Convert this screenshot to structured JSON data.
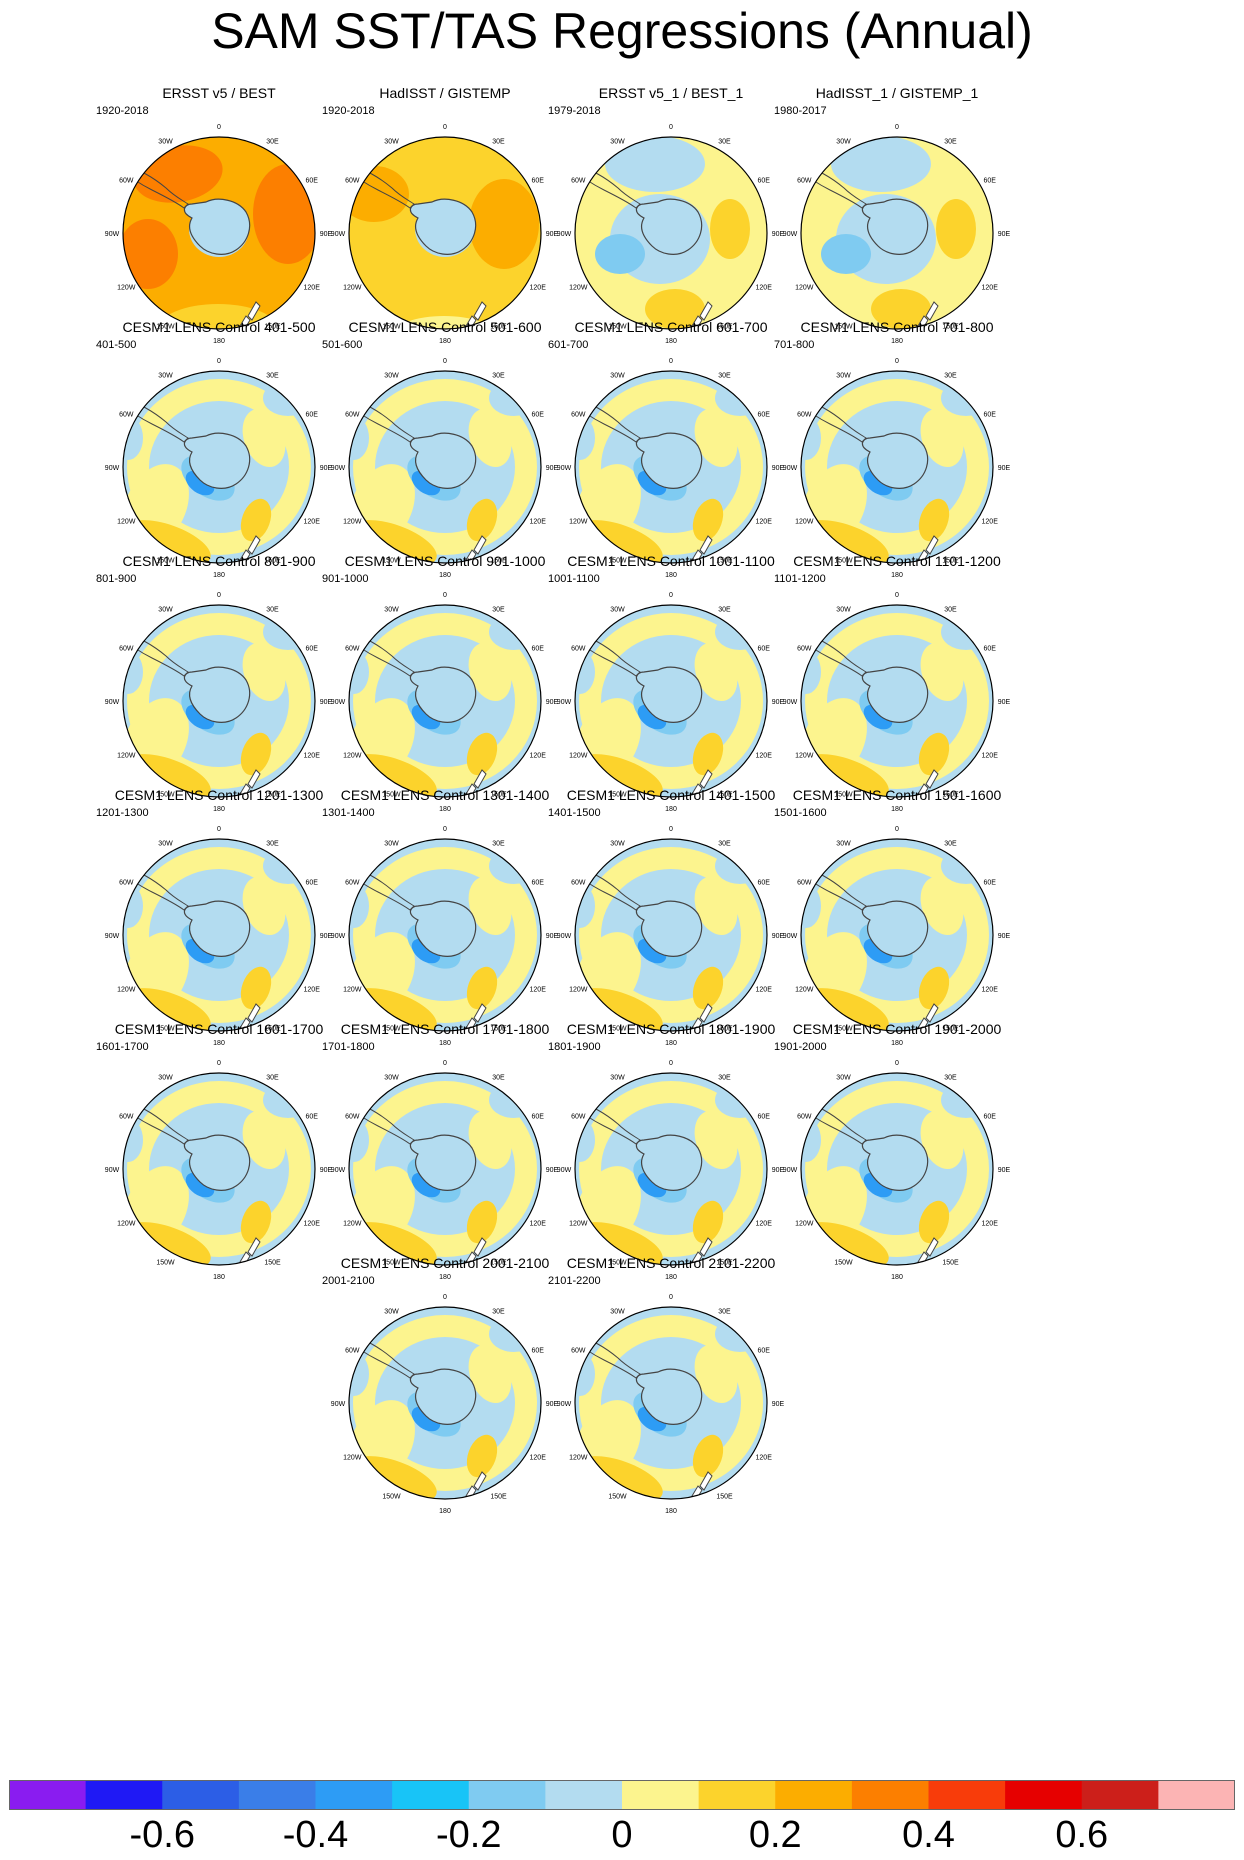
{
  "title": "SAM SST/TAS Regressions (Annual)",
  "lon_labels": [
    "0",
    "30E",
    "60E",
    "90E",
    "120E",
    "150E",
    "180",
    "150W",
    "120W",
    "90W",
    "60W",
    "30W"
  ],
  "panels": [
    {
      "title": "ERSST v5 / BEST",
      "period": "1920-2018",
      "style": "obs-warm"
    },
    {
      "title": "HadISST / GISTEMP",
      "period": "1920-2018",
      "style": "obs-mixed"
    },
    {
      "title": "ERSST v5_1 / BEST_1",
      "period": "1979-2018",
      "style": "obs-recent"
    },
    {
      "title": "HadISST_1 / GISTEMP_1",
      "period": "1980-2017",
      "style": "obs-recent"
    },
    {
      "title": "CESM1 LENS Control 401-500",
      "period": "401-500",
      "style": "model"
    },
    {
      "title": "CESM1 LENS Control 501-600",
      "period": "501-600",
      "style": "model"
    },
    {
      "title": "CESM1 LENS Control 601-700",
      "period": "601-700",
      "style": "model"
    },
    {
      "title": "CESM1 LENS Control 701-800",
      "period": "701-800",
      "style": "model"
    },
    {
      "title": "CESM1 LENS Control 801-900",
      "period": "801-900",
      "style": "model"
    },
    {
      "title": "CESM1 LENS Control 901-1000",
      "period": "901-1000",
      "style": "model"
    },
    {
      "title": "CESM1 LENS Control 1001-1100",
      "period": "1001-1100",
      "style": "model"
    },
    {
      "title": "CESM1 LENS Control 1101-1200",
      "period": "1101-1200",
      "style": "model"
    },
    {
      "title": "CESM1 LENS Control 1201-1300",
      "period": "1201-1300",
      "style": "model"
    },
    {
      "title": "CESM1 LENS Control 1301-1400",
      "period": "1301-1400",
      "style": "model"
    },
    {
      "title": "CESM1 LENS Control 1401-1500",
      "period": "1401-1500",
      "style": "model"
    },
    {
      "title": "CESM1 LENS Control 1501-1600",
      "period": "1501-1600",
      "style": "model"
    },
    {
      "title": "CESM1 LENS Control 1601-1700",
      "period": "1601-1700",
      "style": "model"
    },
    {
      "title": "CESM1 LENS Control 1701-1800",
      "period": "1701-1800",
      "style": "model"
    },
    {
      "title": "CESM1 LENS Control 1801-1900",
      "period": "1801-1900",
      "style": "model"
    },
    {
      "title": "CESM1 LENS Control 1901-2000",
      "period": "1901-2000",
      "style": "model"
    },
    {
      "title": "CESM1 LENS Control 2001-2100",
      "period": "2001-2100",
      "style": "model"
    },
    {
      "title": "CESM1 LENS Control 2101-2200",
      "period": "2101-2200",
      "style": "model"
    }
  ],
  "colorbar": {
    "colors": [
      "#8a1cf0",
      "#1f19f5",
      "#2c5ee6",
      "#3a7ee8",
      "#2d9cf5",
      "#18c4f7",
      "#7fcbf1",
      "#b3dcf0",
      "#fcf48e",
      "#fcd32c",
      "#fcad00",
      "#fc7f00",
      "#f83c0a",
      "#e60000",
      "#cc1f1a",
      "#fcb4b4"
    ],
    "labels": [
      "-0.6",
      "-0.4",
      "-0.2",
      "0",
      "0.2",
      "0.4",
      "0.6"
    ]
  }
}
